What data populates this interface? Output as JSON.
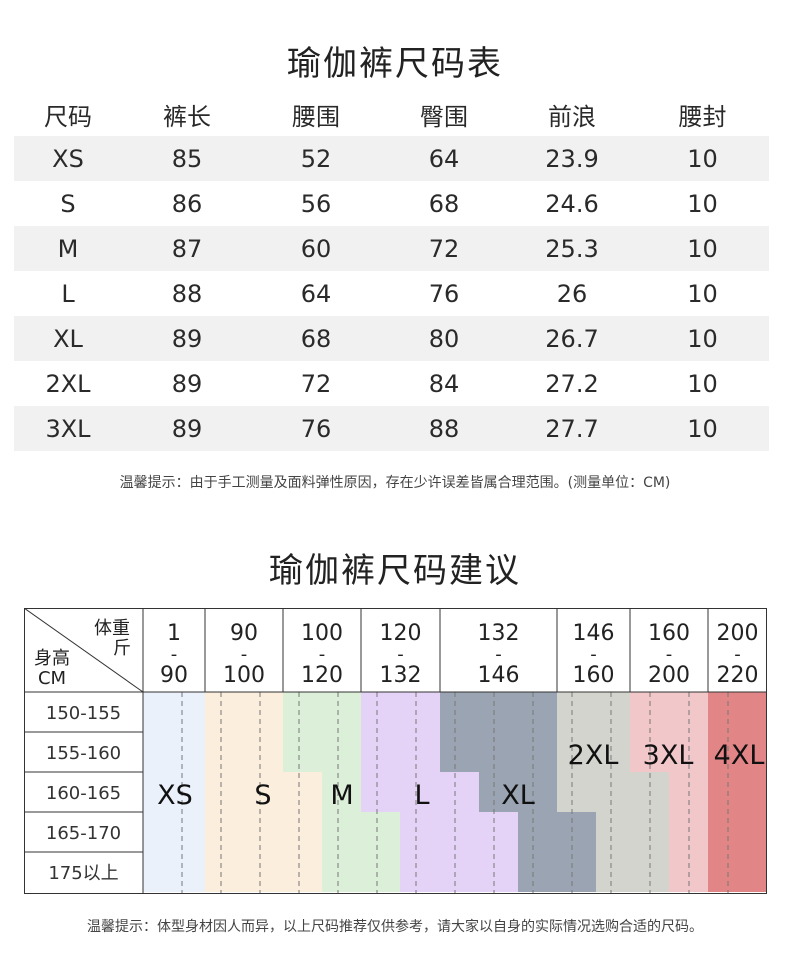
{
  "title1": "瑜伽裤尺码表",
  "size_table": {
    "headers": [
      "尺码",
      "裤长",
      "腰围",
      "臀围",
      "前浪",
      "腰封"
    ],
    "rows": [
      [
        "XS",
        "85",
        "52",
        "64",
        "23.9",
        "10"
      ],
      [
        "S",
        "86",
        "56",
        "68",
        "24.6",
        "10"
      ],
      [
        "M",
        "87",
        "60",
        "72",
        "25.3",
        "10"
      ],
      [
        "L",
        "88",
        "64",
        "76",
        "26",
        "10"
      ],
      [
        "XL",
        "89",
        "68",
        "80",
        "26.7",
        "10"
      ],
      [
        "2XL",
        "89",
        "72",
        "84",
        "27.2",
        "10"
      ],
      [
        "3XL",
        "89",
        "76",
        "88",
        "27.7",
        "10"
      ]
    ]
  },
  "tip1": "温馨提示：由于手工测量及面料弹性原因，存在少许误差皆属合理范围。(测量单位：CM)",
  "title2": "瑜伽裤尺码建议",
  "recommend": {
    "corner_weight": "体重\n斤",
    "corner_height": "身高\nCM",
    "weight_cols": [
      {
        "from": "1",
        "to": "90"
      },
      {
        "from": "90",
        "to": "100"
      },
      {
        "from": "100",
        "to": "120"
      },
      {
        "from": "120",
        "to": "132"
      },
      {
        "from": "132",
        "to": "146"
      },
      {
        "from": "146",
        "to": "160"
      },
      {
        "from": "160",
        "to": "200"
      },
      {
        "from": "200",
        "to": "220"
      }
    ],
    "dash": "-",
    "height_rows": [
      "150-155",
      "155-160",
      "160-165",
      "165-170",
      "175以上"
    ],
    "sizes": [
      {
        "label": "XS",
        "color": "#eaf1fb"
      },
      {
        "label": "S",
        "color": "#fbeedd"
      },
      {
        "label": "M",
        "color": "#dcefd9"
      },
      {
        "label": "L",
        "color": "#e4d3f6"
      },
      {
        "label": "XL",
        "color": "#9aa4b2"
      },
      {
        "label": "2XL",
        "color": "#d4d4cf"
      },
      {
        "label": "3XL",
        "color": "#f2c7c9"
      },
      {
        "label": "4XL",
        "color": "#e28586"
      }
    ]
  },
  "tip2": "温馨提示：体型身材因人而异，以上尺码推荐仅供参考，请大家以自身的实际情况选购合适的尺码。"
}
